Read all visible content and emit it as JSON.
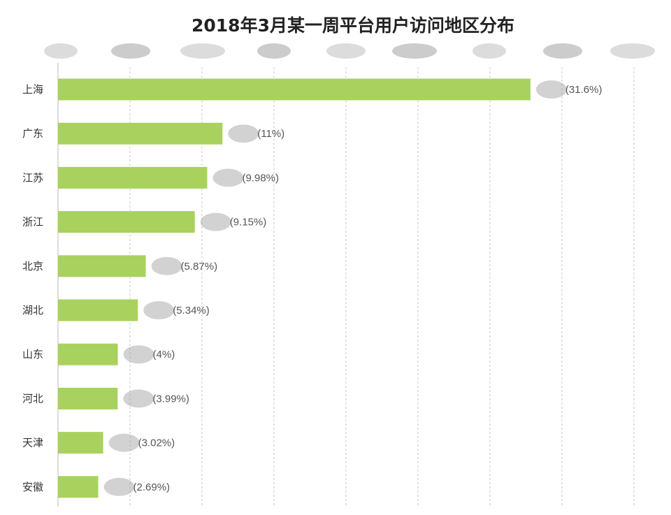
{
  "chart_data": {
    "type": "bar",
    "orientation": "horizontal",
    "title": "2018年3月某一周平台用户访问地区分布",
    "categories": [
      "上海",
      "广东",
      "江苏",
      "浙江",
      "北京",
      "湖北",
      "山东",
      "河北",
      "天津",
      "安徽"
    ],
    "values": [
      31.6,
      11,
      9.98,
      9.15,
      5.87,
      5.34,
      4,
      3.99,
      3.02,
      2.69
    ],
    "value_labels": [
      "(31.6%)",
      "(11%)",
      "(9.98%)",
      "(9.15%)",
      "(5.87%)",
      "(5.34%)",
      "(4%)",
      "(3.99%)",
      "(3.02%)",
      "(2.69%)"
    ],
    "xlabel": "",
    "ylabel": "",
    "xlim": [
      0,
      41
    ],
    "grid": "vertical-dashed",
    "bar_color": "#a9d15e",
    "grid_color": "#c8c8c8",
    "axis_color": "#bbbbbb"
  }
}
